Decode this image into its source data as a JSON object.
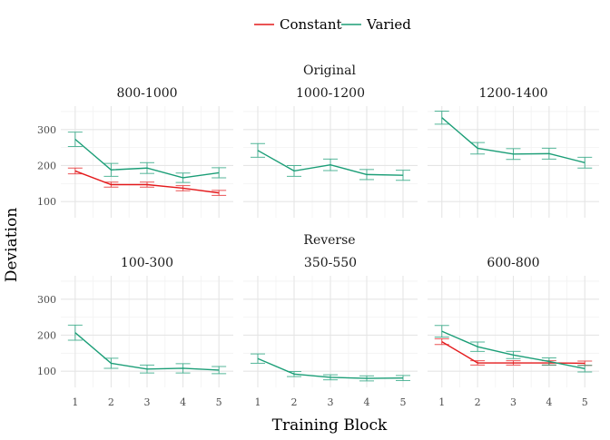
{
  "chart_data": {
    "type": "line",
    "xlabel": "Training Block",
    "ylabel": "Deviation",
    "x": [
      1,
      2,
      3,
      4,
      5
    ],
    "x_ticks": [
      1,
      2,
      3,
      4,
      5
    ],
    "y_ticks": [
      100,
      200,
      300
    ],
    "ylim": [
      55,
      365
    ],
    "grid": true,
    "legend": {
      "position": "top",
      "entries": [
        {
          "name": "Constant",
          "color": "#E41A1C"
        },
        {
          "name": "Varied",
          "color": "#1B9E77"
        }
      ]
    },
    "groups": [
      {
        "label": "Original",
        "panels": [
          {
            "label": "800-1000",
            "series": [
              {
                "name": "Constant",
                "y": [
                  185,
                  147,
                  147,
                  137,
                  124
                ],
                "err": [
                  8,
                  7,
                  7,
                  7,
                  7
                ]
              },
              {
                "name": "Varied",
                "y": [
                  273,
                  188,
                  193,
                  166,
                  180
                ],
                "err": [
                  20,
                  18,
                  15,
                  13,
                  14
                ]
              }
            ]
          },
          {
            "label": "1000-1200",
            "series": [
              {
                "name": "Varied",
                "y": [
                  242,
                  185,
                  202,
                  175,
                  173
                ],
                "err": [
                  19,
                  15,
                  16,
                  14,
                  14
                ]
              }
            ]
          },
          {
            "label": "1200-1400",
            "series": [
              {
                "name": "Varied",
                "y": [
                  333,
                  248,
                  232,
                  233,
                  208
                ],
                "err": [
                  18,
                  16,
                  15,
                  15,
                  15
                ]
              }
            ]
          }
        ]
      },
      {
        "label": "Reverse",
        "panels": [
          {
            "label": "100-300",
            "series": [
              {
                "name": "Varied",
                "y": [
                  207,
                  122,
                  106,
                  108,
                  103
                ],
                "err": [
                  21,
                  14,
                  11,
                  13,
                  10
                ]
              }
            ]
          },
          {
            "label": "350-550",
            "series": [
              {
                "name": "Varied",
                "y": [
                  135,
                  92,
                  83,
                  80,
                  81
                ],
                "err": [
                  13,
                  7,
                  7,
                  7,
                  7
                ]
              }
            ]
          },
          {
            "label": "600-800",
            "series": [
              {
                "name": "Constant",
                "y": [
                  182,
                  123,
                  123,
                  123,
                  122
                ],
                "err": [
                  8,
                  6,
                  6,
                  6,
                  6
                ]
              },
              {
                "name": "Varied",
                "y": [
                  211,
                  168,
                  145,
                  127,
                  107
                ],
                "err": [
                  16,
                  13,
                  10,
                  10,
                  9
                ]
              }
            ]
          }
        ]
      }
    ]
  }
}
